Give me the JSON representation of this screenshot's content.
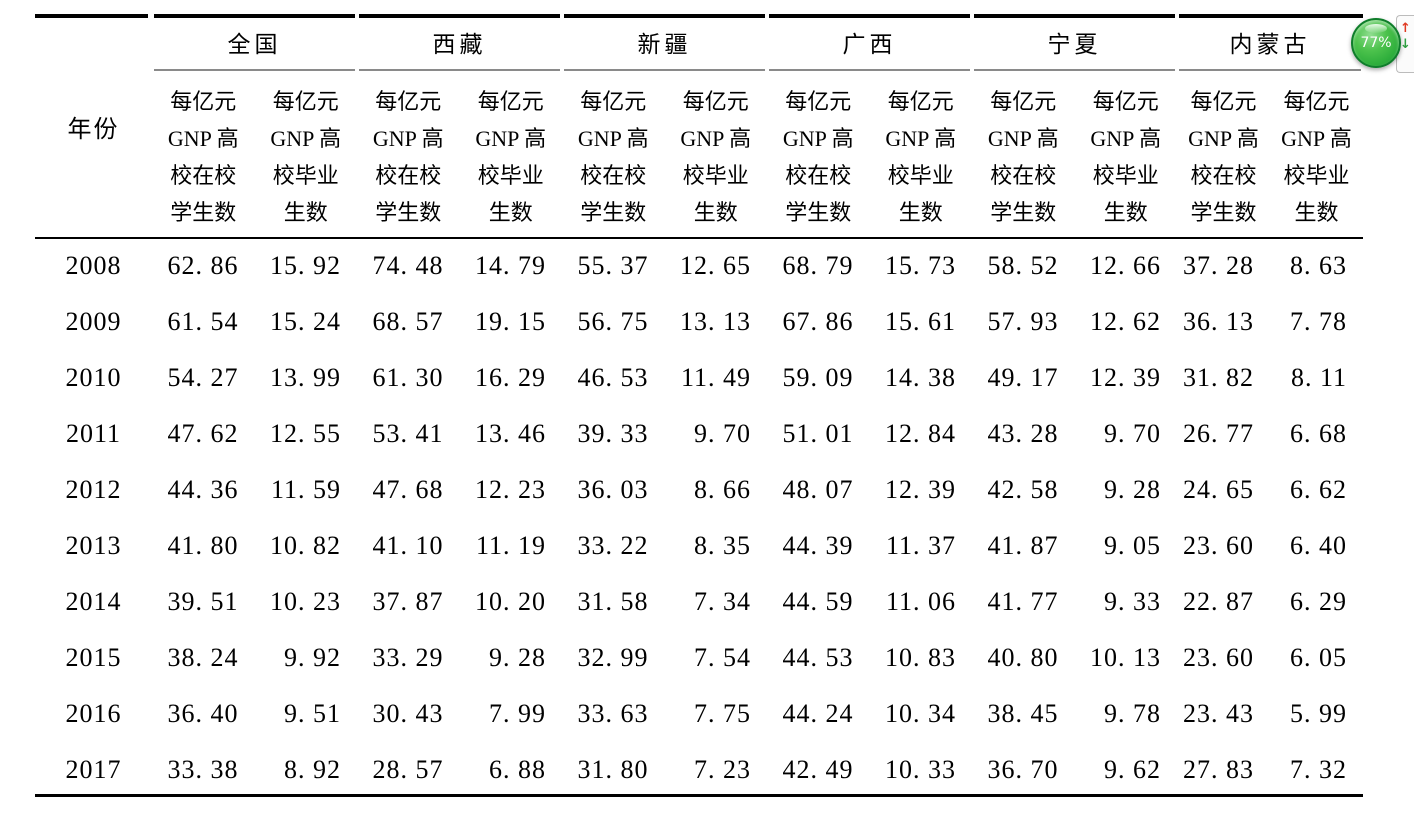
{
  "table": {
    "year_header": "年份",
    "groups": [
      {
        "label": "全国"
      },
      {
        "label": "西藏"
      },
      {
        "label": "新疆"
      },
      {
        "label": "广西"
      },
      {
        "label": "宁夏"
      },
      {
        "label": "内蒙古"
      }
    ],
    "subheaders": {
      "students": [
        "每亿元",
        "GNP 高",
        "校在校",
        "学生数"
      ],
      "graduates": [
        "每亿元",
        "GNP 高",
        "校毕业",
        "生数"
      ]
    },
    "rows": [
      {
        "year": "2008",
        "values": [
          "62. 86",
          "15. 92",
          "74. 48",
          "14. 79",
          "55. 37",
          "12. 65",
          "68. 79",
          "15. 73",
          "58. 52",
          "12. 66",
          "37. 28",
          "8. 63"
        ]
      },
      {
        "year": "2009",
        "values": [
          "61. 54",
          "15. 24",
          "68. 57",
          "19. 15",
          "56. 75",
          "13. 13",
          "67. 86",
          "15. 61",
          "57. 93",
          "12. 62",
          "36. 13",
          "7. 78"
        ]
      },
      {
        "year": "2010",
        "values": [
          "54. 27",
          "13. 99",
          "61. 30",
          "16. 29",
          "46. 53",
          "11. 49",
          "59. 09",
          "14. 38",
          "49. 17",
          "12. 39",
          "31. 82",
          "8. 11"
        ]
      },
      {
        "year": "2011",
        "values": [
          "47. 62",
          "12. 55",
          "53. 41",
          "13. 46",
          "39. 33",
          "9. 70",
          "51. 01",
          "12. 84",
          "43. 28",
          "9. 70",
          "26. 77",
          "6. 68"
        ]
      },
      {
        "year": "2012",
        "values": [
          "44. 36",
          "11. 59",
          "47. 68",
          "12. 23",
          "36. 03",
          "8. 66",
          "48. 07",
          "12. 39",
          "42. 58",
          "9. 28",
          "24. 65",
          "6. 62"
        ]
      },
      {
        "year": "2013",
        "values": [
          "41. 80",
          "10. 82",
          "41. 10",
          "11. 19",
          "33. 22",
          "8. 35",
          "44. 39",
          "11. 37",
          "41. 87",
          "9. 05",
          "23. 60",
          "6. 40"
        ]
      },
      {
        "year": "2014",
        "values": [
          "39. 51",
          "10. 23",
          "37. 87",
          "10. 20",
          "31. 58",
          "7. 34",
          "44. 59",
          "11. 06",
          "41. 77",
          "9. 33",
          "22. 87",
          "6. 29"
        ]
      },
      {
        "year": "2015",
        "values": [
          "38. 24",
          "9. 92",
          "33. 29",
          "9. 28",
          "32. 99",
          "7. 54",
          "44. 53",
          "10. 83",
          "40. 80",
          "10. 13",
          "23. 60",
          "6. 05"
        ]
      },
      {
        "year": "2016",
        "values": [
          "36. 40",
          "9. 51",
          "30. 43",
          "7. 99",
          "33. 63",
          "7. 75",
          "44. 24",
          "10. 34",
          "38. 45",
          "9. 78",
          "23. 43",
          "5. 99"
        ]
      },
      {
        "year": "2017",
        "values": [
          "33. 38",
          "8. 92",
          "28. 57",
          "6. 88",
          "31. 80",
          "7. 23",
          "42. 49",
          "10. 33",
          "36. 70",
          "9. 62",
          "27. 83",
          "7. 32"
        ]
      }
    ]
  },
  "overlay": {
    "zoom_percent": "77%",
    "scroll_up": "↑",
    "scroll_down": "↓"
  },
  "colors": {
    "badge_green": "#2eae3c",
    "rule_black": "#000000",
    "rule_gray": "#8a8a8a",
    "arrow_red": "#e03a22",
    "arrow_green": "#2fa042"
  }
}
